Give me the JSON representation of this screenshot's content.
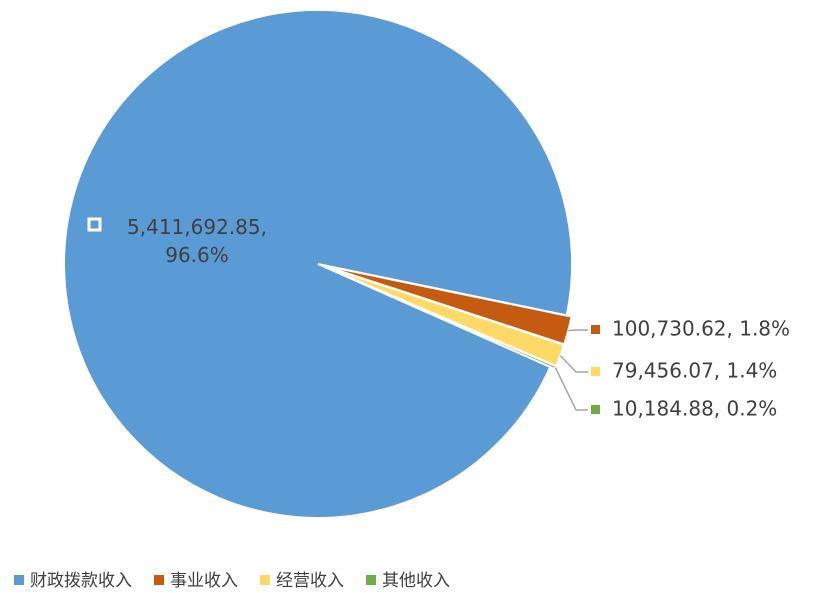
{
  "chart_data": {
    "type": "pie",
    "categories": [
      "财政拨款收入",
      "事业收入",
      "经营收入",
      "其他收入"
    ],
    "values": [
      5411692.85,
      100730.62,
      79456.07,
      10184.88
    ],
    "value_labels": [
      "5,411,692.85, 96.6%",
      "100,730.62, 1.8%",
      "79,456.07, 1.4%",
      "10,184.88, 0.2%"
    ],
    "colors": [
      "#5b9bd5",
      "#c55a11",
      "#ffd966",
      "#70ad47"
    ],
    "legend": "bottom"
  }
}
